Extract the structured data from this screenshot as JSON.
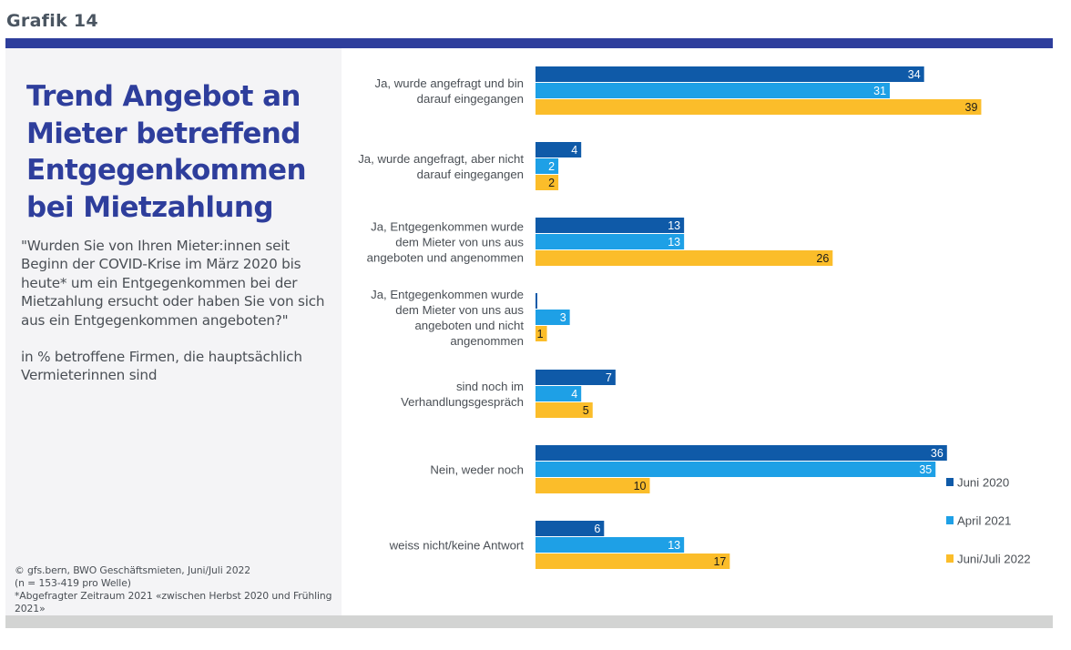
{
  "header": {
    "grafik_label": "Grafik 14"
  },
  "left_panel": {
    "title": "Trend Angebot an Mieter betreffend Entgegenkommen bei Mietzahlung",
    "question": "\"Wurden Sie von Ihren Mieter:innen seit Beginn der COVID-Krise im März 2020 bis heute* um ein Entgegenkommen bei der Mietzahlung ersucht oder haben Sie von sich aus ein Entgegenkommen angeboten?\"",
    "unit_note": "in % betroffene Firmen, die hauptsächlich Vermieterinnen sind",
    "source_lines": [
      "©  gfs.bern, BWO Geschäftsmieten, Juni/Juli 2022",
      "(n = 153-419 pro Welle)",
      "*Abgefragter Zeitraum 2021 «zwischen Herbst 2020 und Frühling 2021»"
    ]
  },
  "colors": {
    "brand_blue": "#2e3e9c",
    "juni_2020": "#0f5aa8",
    "april_2021": "#1ea0e6",
    "juni_juli_2022": "#fbbd2a"
  },
  "chart_data": {
    "type": "bar",
    "orientation": "horizontal",
    "title": "Trend Angebot an Mieter betreffend Entgegenkommen bei Mietzahlung",
    "xlabel": "",
    "ylabel": "",
    "unit": "%",
    "xlim": [
      0,
      39
    ],
    "grid": false,
    "legend_position": "bottom-right",
    "categories": [
      [
        "Ja, wurde angefragt und bin",
        "darauf eingegangen"
      ],
      [
        "Ja, wurde angefragt, aber nicht",
        "darauf eingegangen"
      ],
      [
        "Ja, Entgegenkommen wurde",
        "dem Mieter von uns aus",
        "angeboten und angenommen"
      ],
      [
        "Ja, Entgegenkommen wurde",
        "dem Mieter von uns aus",
        "angeboten und nicht",
        "angenommen"
      ],
      [
        "sind noch im",
        "Verhandlungsgespräch"
      ],
      [
        "Nein, weder noch"
      ],
      [
        "weiss nicht/keine Antwort"
      ]
    ],
    "series": [
      {
        "name": "Juni 2020",
        "color": "#0f5aa8",
        "label_color": "#ffffff",
        "values": [
          34,
          4,
          13,
          0,
          7,
          36,
          6
        ],
        "labels": [
          "34",
          "4",
          "13",
          "",
          "7",
          "36",
          "6"
        ]
      },
      {
        "name": "April 2021",
        "color": "#1ea0e6",
        "label_color": "#ffffff",
        "values": [
          31,
          2,
          13,
          3,
          4,
          35,
          13
        ],
        "labels": [
          "31",
          "2",
          "13",
          "3",
          "4",
          "35",
          "13"
        ]
      },
      {
        "name": "Juni/Juli 2022",
        "color": "#fbbd2a",
        "label_color": "#1a1a1a",
        "values": [
          39,
          2,
          26,
          1,
          5,
          10,
          17
        ],
        "labels": [
          "39",
          "2",
          "26",
          "1",
          "5",
          "10",
          "17"
        ]
      }
    ]
  }
}
